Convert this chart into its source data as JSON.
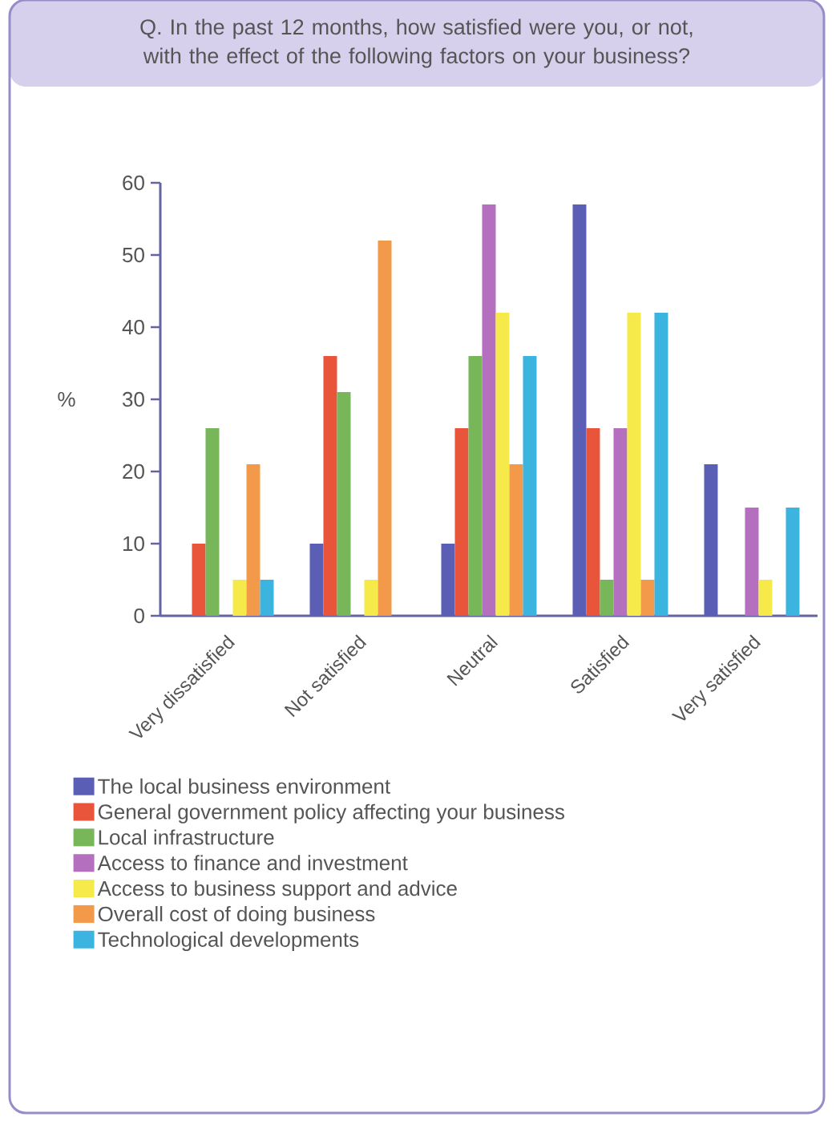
{
  "chart_data": {
    "type": "bar",
    "title": "Q.  In the past 12 months, how satisfied were you, or not, with the effect of the following factors on your business?",
    "ylabel": "%",
    "categories": [
      "Very dissatisfied",
      "Not satisfied",
      "Neutral",
      "Satisfied",
      "Very satisfied"
    ],
    "series": [
      {
        "name": "The local business environment",
        "color": "#5a5fb5",
        "values": [
          0,
          10,
          10,
          57,
          21
        ]
      },
      {
        "name": "General government policy affecting your business",
        "color": "#e8553a",
        "values": [
          10,
          36,
          26,
          26,
          0
        ]
      },
      {
        "name": "Local infrastructure",
        "color": "#77b75a",
        "values": [
          26,
          31,
          36,
          5,
          0
        ]
      },
      {
        "name": "Access to finance and investment",
        "color": "#b46fbf",
        "values": [
          0,
          0,
          57,
          26,
          15
        ]
      },
      {
        "name": "Access to business support and advice",
        "color": "#f5ea4a",
        "values": [
          5,
          5,
          42,
          42,
          5
        ]
      },
      {
        "name": "Overall cost of doing business",
        "color": "#f39a4a",
        "values": [
          21,
          52,
          21,
          5,
          0
        ]
      },
      {
        "name": "Technological developments",
        "color": "#3cb4e0",
        "values": [
          5,
          0,
          36,
          42,
          15
        ]
      }
    ],
    "ylim": [
      0,
      60
    ],
    "yticks": [
      0,
      10,
      20,
      30,
      40,
      50,
      60
    ],
    "legend": "bottom",
    "grid": false
  }
}
